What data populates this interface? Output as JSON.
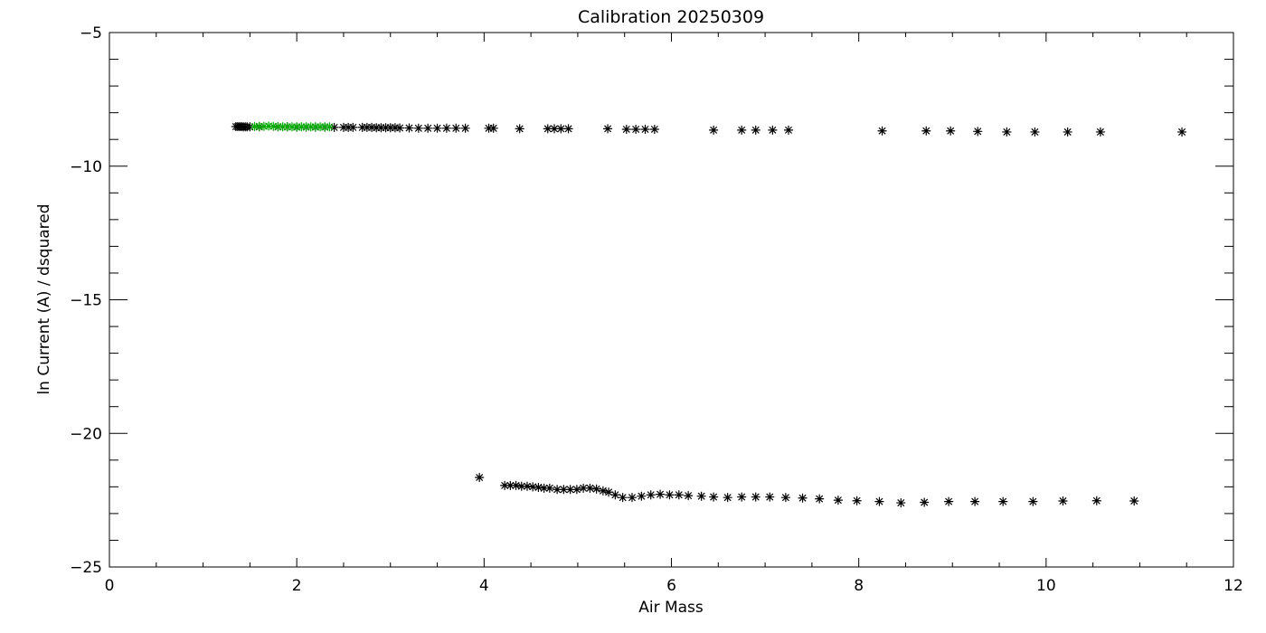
{
  "chart_data": {
    "type": "scatter",
    "title": "Calibration 20250309",
    "xlabel": "Air Mass",
    "ylabel": "ln Current (A) / dsquared",
    "xlim": [
      0,
      12
    ],
    "ylim": [
      -25,
      -5
    ],
    "x_ticks": [
      0,
      2,
      4,
      6,
      8,
      10,
      12
    ],
    "y_ticks": [
      -25,
      -20,
      -15,
      -10,
      -5
    ],
    "x_tick_labels": [
      "0",
      "2",
      "4",
      "6",
      "8",
      "10",
      "12"
    ],
    "y_tick_labels": [
      "−25",
      "−20",
      "−15",
      "−10",
      "−5"
    ],
    "x_minor_step": 0.5,
    "y_minor_step": 1,
    "grid": false,
    "legend": "none",
    "marker": "asterisk",
    "series": [
      {
        "color": "#000000",
        "x": [
          1.35,
          1.37,
          1.39,
          1.41,
          1.43,
          1.45,
          1.47,
          1.5,
          1.6,
          1.8,
          1.9,
          2.0,
          2.1,
          2.2,
          2.3,
          2.4,
          2.5,
          2.55,
          2.6,
          2.7,
          2.75,
          2.8,
          2.85,
          2.9,
          2.95,
          3.0,
          3.05,
          3.1,
          3.2,
          3.3,
          3.4,
          3.5,
          3.6,
          3.7,
          3.8,
          4.05,
          4.1,
          4.38,
          4.68,
          4.75,
          4.82,
          4.9,
          5.32,
          5.52,
          5.62,
          5.72,
          5.82,
          6.45,
          6.75,
          6.9,
          7.08,
          7.25,
          8.25,
          8.72,
          8.98,
          9.27,
          9.58,
          9.88,
          10.23,
          10.58,
          11.45
        ],
        "y": [
          -8.52,
          -8.52,
          -8.52,
          -8.52,
          -8.53,
          -8.53,
          -8.53,
          -8.53,
          -8.53,
          -8.53,
          -8.53,
          -8.54,
          -8.54,
          -8.54,
          -8.54,
          -8.55,
          -8.55,
          -8.55,
          -8.55,
          -8.55,
          -8.55,
          -8.55,
          -8.56,
          -8.56,
          -8.56,
          -8.56,
          -8.56,
          -8.57,
          -8.57,
          -8.58,
          -8.58,
          -8.58,
          -8.58,
          -8.58,
          -8.58,
          -8.58,
          -8.58,
          -8.6,
          -8.6,
          -8.6,
          -8.6,
          -8.6,
          -8.6,
          -8.62,
          -8.62,
          -8.62,
          -8.62,
          -8.65,
          -8.65,
          -8.65,
          -8.65,
          -8.65,
          -8.68,
          -8.68,
          -8.68,
          -8.7,
          -8.72,
          -8.72,
          -8.72,
          -8.72,
          -8.72
        ]
      },
      {
        "color": "#00aa00",
        "x": [
          1.55,
          1.6,
          1.65,
          1.7,
          1.75,
          1.8,
          1.85,
          1.9,
          1.95,
          2.0,
          2.05,
          2.1,
          2.15,
          2.2,
          2.25,
          2.3,
          2.35
        ],
        "y": [
          -8.52,
          -8.51,
          -8.51,
          -8.5,
          -8.51,
          -8.52,
          -8.53,
          -8.53,
          -8.53,
          -8.53,
          -8.53,
          -8.53,
          -8.53,
          -8.53,
          -8.53,
          -8.53,
          -8.53
        ]
      },
      {
        "color": "#000000",
        "x": [
          3.95,
          4.22,
          4.28,
          4.34,
          4.4,
          4.46,
          4.52,
          4.58,
          4.64,
          4.7,
          4.78,
          4.85,
          4.92,
          4.99,
          5.06,
          5.13,
          5.2,
          5.27,
          5.33,
          5.4,
          5.48,
          5.58,
          5.68,
          5.78,
          5.88,
          5.98,
          6.08,
          6.18,
          6.32,
          6.45,
          6.6,
          6.75,
          6.9,
          7.05,
          7.22,
          7.4,
          7.58,
          7.78,
          7.98,
          8.22,
          8.45,
          8.7,
          8.96,
          9.24,
          9.54,
          9.86,
          10.18,
          10.54,
          10.94
        ],
        "y": [
          -21.65,
          -21.95,
          -21.95,
          -21.95,
          -21.98,
          -21.98,
          -22.0,
          -22.02,
          -22.05,
          -22.05,
          -22.1,
          -22.1,
          -22.1,
          -22.1,
          -22.05,
          -22.05,
          -22.08,
          -22.15,
          -22.2,
          -22.3,
          -22.4,
          -22.4,
          -22.35,
          -22.3,
          -22.28,
          -22.3,
          -22.3,
          -22.33,
          -22.35,
          -22.38,
          -22.4,
          -22.38,
          -22.38,
          -22.38,
          -22.4,
          -22.42,
          -22.45,
          -22.5,
          -22.52,
          -22.55,
          -22.6,
          -22.58,
          -22.55,
          -22.55,
          -22.55,
          -22.55,
          -22.53,
          -22.52,
          -22.53
        ]
      }
    ]
  }
}
